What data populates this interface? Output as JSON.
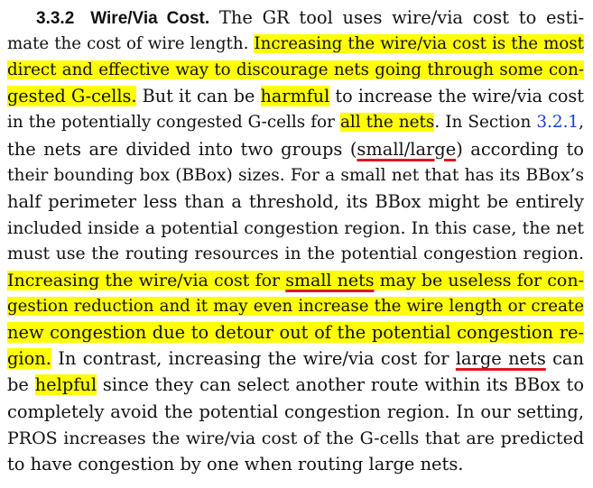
{
  "colors": {
    "highlight": "#ffff00",
    "underline": "#e0161e",
    "link": "#1a3fd6",
    "text": "#111111"
  },
  "section": {
    "number": "3.3.2",
    "title": "Wire/Via Cost."
  },
  "lines": [
    [
      {
        "t": " The GR tool uses wire/via cost to esti-"
      }
    ],
    [
      {
        "t": "mate the cost of wire length. "
      },
      {
        "t": "Increasing the wire/via cost is the most",
        "s": "hl"
      }
    ],
    [
      {
        "t": "direct and effective way to discourage nets going through some con-",
        "s": "hl"
      }
    ],
    [
      {
        "t": "gested G-cells.",
        "s": "hl"
      },
      {
        "t": " But it can be "
      },
      {
        "t": "harmful",
        "s": "hl"
      },
      {
        "t": " to increase the wire/via cost"
      }
    ],
    [
      {
        "t": "in the potentially congested G-cells for "
      },
      {
        "t": "all the nets",
        "s": "hl"
      },
      {
        "t": ". In Section "
      },
      {
        "t": "3.2.1",
        "s": "ref"
      },
      {
        "t": ","
      }
    ],
    [
      {
        "t": "the nets are divided into two groups ("
      },
      {
        "t": "small/large",
        "s": "ul"
      },
      {
        "t": ") according to"
      }
    ],
    [
      {
        "t": "their bounding box (BBox) sizes. For a small net that has its BBox’s"
      }
    ],
    [
      {
        "t": "half perimeter less than a threshold, its BBox might be entirely"
      }
    ],
    [
      {
        "t": "included inside a potential congestion region. In this case, the net"
      }
    ],
    [
      {
        "t": "must use the routing resources in the potential congestion region."
      }
    ],
    [
      {
        "t": "Increasing the wire/via cost for ",
        "s": "hl"
      },
      {
        "t": "small nets",
        "s": "hl ul"
      },
      {
        "t": " may be useless for con-",
        "s": "hl"
      }
    ],
    [
      {
        "t": "gestion reduction and it may even increase the wire length or create",
        "s": "hl"
      }
    ],
    [
      {
        "t": "new congestion due to detour out of the potential congestion re-",
        "s": "hl"
      }
    ],
    [
      {
        "t": "gion.",
        "s": "hl"
      },
      {
        "t": " In contrast, increasing the wire/via cost for "
      },
      {
        "t": "large nets",
        "s": "ul"
      },
      {
        "t": " can"
      }
    ],
    [
      {
        "t": "be "
      },
      {
        "t": "helpful",
        "s": "hl"
      },
      {
        "t": " since they can select another route within its BBox to"
      }
    ],
    [
      {
        "t": "completely avoid the potential congestion region. In our setting,"
      }
    ],
    [
      {
        "t": "PROS increases the wire/via cost of the G-cells that are predicted"
      }
    ],
    [
      {
        "t": "to have congestion by one when routing large nets."
      }
    ]
  ]
}
